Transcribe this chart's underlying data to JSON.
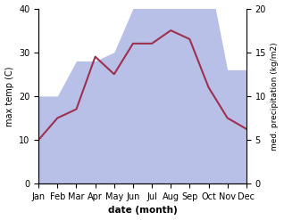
{
  "months": [
    "Jan",
    "Feb",
    "Mar",
    "Apr",
    "May",
    "Jun",
    "Jul",
    "Aug",
    "Sep",
    "Oct",
    "Nov",
    "Dec"
  ],
  "max_temp": [
    10,
    15,
    17,
    29,
    25,
    32,
    32,
    35,
    33,
    22,
    15,
    12.5
  ],
  "precipitation": [
    10,
    10,
    14,
    14,
    15,
    20,
    24,
    24,
    23,
    24,
    13,
    13
  ],
  "temp_color": "#9e3050",
  "precip_color_fill": "#b8c0e8",
  "temp_ylim": [
    0,
    40
  ],
  "precip_ylim": [
    0,
    20
  ],
  "precip_scale_factor": 2.0,
  "ylabel_left": "max temp (C)",
  "ylabel_right": "med. precipitation (kg/m2)",
  "xlabel": "date (month)",
  "bg_color": "#ffffff",
  "left_ticks": [
    0,
    10,
    20,
    30,
    40
  ],
  "right_ticks": [
    0,
    5,
    10,
    15,
    20
  ]
}
